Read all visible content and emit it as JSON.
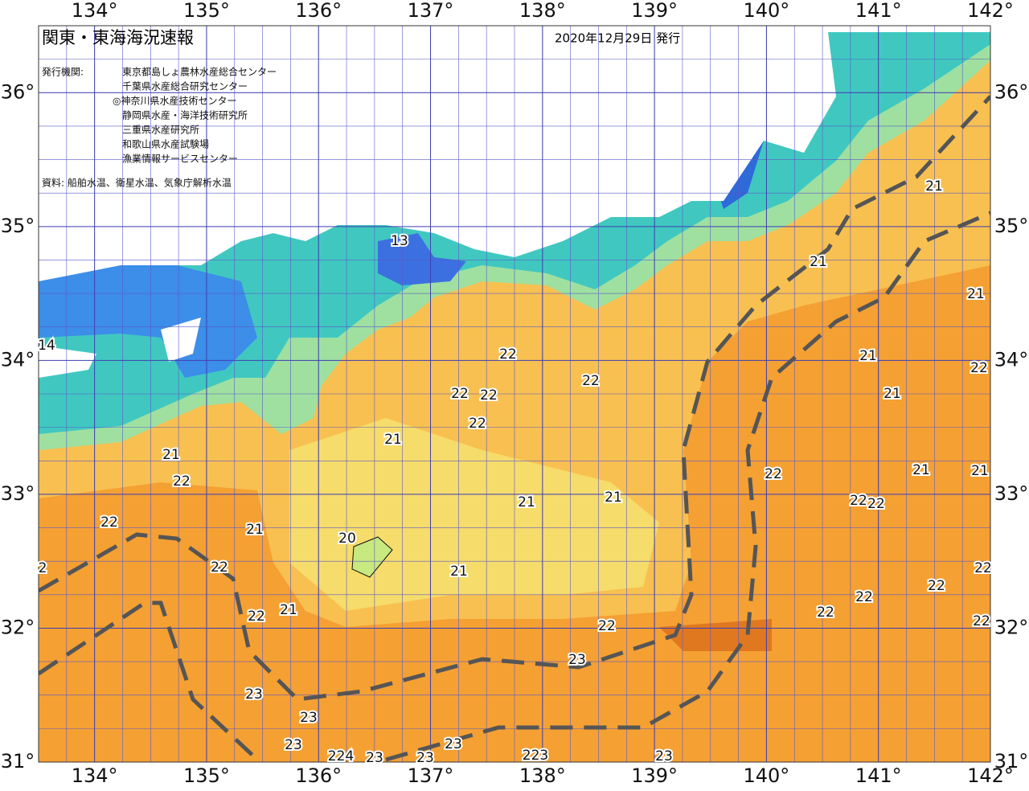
{
  "map": {
    "title": "関東・東海海況速報",
    "date": "2020年12月29日 発行",
    "issuers_label": "発行機関:",
    "issuers": [
      "東京都島しょ農林水産総合センター",
      "千葉県水産総合研究センター",
      "◎神奈川県水産技術センター",
      "静岡県水産・海洋技術研究所",
      "三重県水産研究所",
      "和歌山県水産試験場",
      "漁業情報サービスセンター"
    ],
    "source": "資料: 船舶水温、衛星水温、気象庁解析水温",
    "lonlim": [
      133.5,
      142
    ],
    "latlim": [
      31,
      36.5
    ],
    "lon_ticks": [
      {
        "value": 134,
        "label": "134°"
      },
      {
        "value": 135,
        "label": "135°"
      },
      {
        "value": 136,
        "label": "136°"
      },
      {
        "value": 137,
        "label": "137°"
      },
      {
        "value": 138,
        "label": "138°"
      },
      {
        "value": 139,
        "label": "139°"
      },
      {
        "value": 140,
        "label": "140°"
      },
      {
        "value": 141,
        "label": "141°"
      },
      {
        "value": 142,
        "label": "142°"
      }
    ],
    "lat_ticks": [
      {
        "value": 31,
        "label": "31°"
      },
      {
        "value": 32,
        "label": "32°"
      },
      {
        "value": 33,
        "label": "33°"
      },
      {
        "value": 34,
        "label": "34°"
      },
      {
        "value": 35,
        "label": "35°"
      },
      {
        "value": 36,
        "label": "36°"
      }
    ],
    "contour_labels": [
      "13",
      "14",
      "21",
      "21",
      "21",
      "21",
      "22",
      "22",
      "22",
      "21",
      "22",
      "22",
      "22",
      "21",
      "21",
      "22",
      "21",
      "21",
      "22",
      "21",
      "21",
      "22",
      "22",
      "22",
      "21",
      "20",
      "2",
      "22",
      "22",
      "21",
      "22",
      "22",
      "21",
      "22",
      "22",
      "22",
      "22",
      "23",
      "23",
      "23",
      "23",
      "23",
      "224",
      "23",
      "23",
      "223",
      "23"
    ]
  }
}
